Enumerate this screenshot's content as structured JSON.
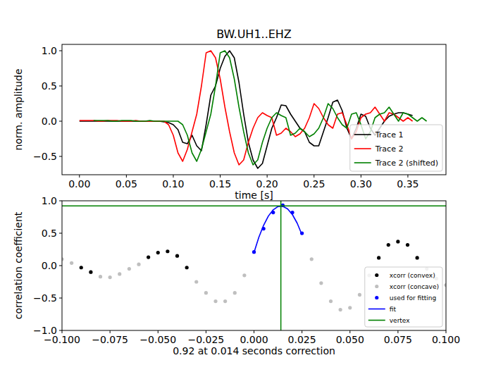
{
  "chart_data": [
    {
      "type": "line",
      "title": "BW.UH1..EHZ",
      "x_label": "time [s]",
      "y_label": "norm. amplitude",
      "x": [
        0,
        0.005,
        0.01,
        0.015,
        0.02,
        0.025,
        0.03,
        0.035,
        0.04,
        0.045,
        0.05,
        0.055,
        0.06,
        0.065,
        0.07,
        0.075,
        0.08,
        0.085,
        0.09,
        0.095,
        0.1,
        0.105,
        0.11,
        0.115,
        0.12,
        0.125,
        0.13,
        0.135,
        0.14,
        0.145,
        0.15,
        0.155,
        0.16,
        0.165,
        0.17,
        0.175,
        0.18,
        0.185,
        0.19,
        0.195,
        0.2,
        0.205,
        0.21,
        0.215,
        0.22,
        0.225,
        0.23,
        0.235,
        0.24,
        0.245,
        0.25,
        0.255,
        0.26,
        0.265,
        0.27,
        0.275,
        0.28,
        0.285,
        0.29,
        0.295,
        0.3,
        0.305,
        0.31,
        0.315,
        0.32,
        0.325,
        0.33,
        0.335,
        0.34,
        0.345,
        0.35,
        0.355
      ],
      "xlim": [
        -0.0186,
        0.3906
      ],
      "xticks": [
        {
          "value": 0,
          "label": "0.00"
        },
        {
          "value": 0.05,
          "label": "0.05"
        },
        {
          "value": 0.1,
          "label": "0.10"
        },
        {
          "value": 0.15,
          "label": "0.15"
        },
        {
          "value": 0.2,
          "label": "0.20"
        },
        {
          "value": 0.25,
          "label": "0.25"
        },
        {
          "value": 0.3,
          "label": "0.30"
        },
        {
          "value": 0.35,
          "label": "0.35"
        }
      ],
      "ylim": [
        -0.76,
        1.09
      ],
      "yticks": [
        {
          "value": -0.5,
          "label": "−0.5"
        },
        {
          "value": 0,
          "label": "0.0"
        },
        {
          "value": 0.5,
          "label": "0.5"
        },
        {
          "value": 1,
          "label": "1.0"
        }
      ],
      "legend": "lower right",
      "series": [
        {
          "name": "Trace 1",
          "color": "#000000",
          "line_style": "solid",
          "values": [
            0,
            0,
            0,
            0,
            0,
            0,
            0,
            0,
            0,
            0,
            0,
            0,
            0,
            0,
            0,
            0,
            0,
            0,
            -0.01,
            -0.02,
            -0.05,
            -0.12,
            -0.3,
            -0.32,
            -0.2,
            -0.35,
            -0.42,
            -0.05,
            0.37,
            0.5,
            0.75,
            0.92,
            1.0,
            0.9,
            0.55,
            0.1,
            -0.3,
            -0.55,
            -0.67,
            -0.6,
            -0.35,
            -0.1,
            0.05,
            0.23,
            0.22,
            0.1,
            0,
            -0.1,
            -0.15,
            -0.3,
            -0.35,
            -0.35,
            -0.15,
            0.05,
            0.27,
            0.3,
            0.15,
            -0.1,
            -0.25,
            -0.1,
            0.1,
            0.07,
            -0.1,
            -0.2,
            -0.1,
            0,
            0.07,
            0.1,
            0.12,
            0.12,
            0.1,
            0.08
          ]
        },
        {
          "name": "Trace 2",
          "color": "#ff0000",
          "line_style": "solid",
          "values": [
            0.01,
            0.01,
            0.01,
            0.01,
            0,
            0,
            0.01,
            0.01,
            0.01,
            0,
            0,
            0,
            0.01,
            0,
            0,
            0,
            0,
            0,
            0,
            -0.05,
            -0.2,
            -0.45,
            -0.57,
            -0.4,
            -0.15,
            0.1,
            0.5,
            0.97,
            1.0,
            0.9,
            0.6,
            0.2,
            -0.15,
            -0.45,
            -0.62,
            -0.55,
            -0.3,
            -0.1,
            0.05,
            0.12,
            0.08,
            0.05,
            -0.2,
            -0.17,
            -0.1,
            -0.15,
            -0.22,
            -0.18,
            -0.1,
            0.05,
            0.25,
            0.18,
            0.05,
            -0.05,
            -0.1,
            0.1,
            0.12,
            -0.05,
            -0.25,
            -0.15,
            0.05,
            0.1,
            0.12,
            0.2,
            0.1,
            0,
            0.12,
            0.1,
            0.05,
            0,
            0.05,
            0
          ]
        },
        {
          "name": "Trace 2 (shifted)",
          "color": "#008000",
          "line_style": "solid",
          "x": [
            0.015,
            0.02,
            0.025,
            0.03,
            0.035,
            0.04,
            0.045,
            0.05,
            0.055,
            0.06,
            0.065,
            0.07,
            0.075,
            0.08,
            0.085,
            0.09,
            0.095,
            0.1,
            0.105,
            0.11,
            0.115,
            0.12,
            0.125,
            0.13,
            0.135,
            0.14,
            0.145,
            0.15,
            0.155,
            0.16,
            0.165,
            0.17,
            0.175,
            0.18,
            0.185,
            0.19,
            0.195,
            0.2,
            0.205,
            0.21,
            0.215,
            0.22,
            0.225,
            0.23,
            0.235,
            0.24,
            0.245,
            0.25,
            0.255,
            0.26,
            0.265,
            0.27,
            0.275,
            0.28,
            0.285,
            0.29,
            0.295,
            0.3,
            0.305,
            0.31,
            0.315,
            0.32,
            0.325,
            0.33,
            0.335,
            0.34,
            0.345,
            0.35,
            0.355,
            0.36,
            0.365,
            0.37
          ],
          "values": [
            0.01,
            0.01,
            0.01,
            0.01,
            0,
            0,
            0.01,
            0.01,
            0.01,
            0,
            0,
            0,
            0.01,
            0,
            0,
            0,
            0,
            0,
            0,
            -0.05,
            -0.2,
            -0.45,
            -0.57,
            -0.4,
            -0.15,
            0.1,
            0.5,
            0.97,
            1.0,
            0.9,
            0.6,
            0.2,
            -0.15,
            -0.45,
            -0.62,
            -0.55,
            -0.3,
            -0.1,
            0.05,
            0.12,
            0.08,
            0.05,
            -0.2,
            -0.17,
            -0.1,
            -0.15,
            -0.22,
            -0.18,
            -0.1,
            0.05,
            0.25,
            0.18,
            0.05,
            -0.05,
            -0.1,
            0.1,
            0.12,
            -0.05,
            -0.25,
            -0.15,
            0.05,
            0.1,
            0.12,
            0.2,
            0.1,
            0,
            0.12,
            0.1,
            0.05,
            0,
            0.05,
            0
          ]
        }
      ]
    },
    {
      "type": "scatter",
      "x_label": "0.92 at 0.014 seconds correction",
      "y_label": "correlation coefficient",
      "xlim": [
        -0.1,
        0.1
      ],
      "xticks": [
        {
          "value": -0.1,
          "label": "−0.100"
        },
        {
          "value": -0.075,
          "label": "−0.075"
        },
        {
          "value": -0.05,
          "label": "−0.050"
        },
        {
          "value": -0.025,
          "label": "−0.025"
        },
        {
          "value": 0,
          "label": "0.000"
        },
        {
          "value": 0.025,
          "label": "0.025"
        },
        {
          "value": 0.05,
          "label": "0.050"
        },
        {
          "value": 0.075,
          "label": "0.075"
        },
        {
          "value": 0.1,
          "label": "0.100"
        }
      ],
      "ylim": [
        -1,
        1
      ],
      "yticks": [
        {
          "value": -1,
          "label": "−1.0"
        },
        {
          "value": -0.5,
          "label": "−0.5"
        },
        {
          "value": 0,
          "label": "0.0"
        },
        {
          "value": 0.5,
          "label": "0.5"
        },
        {
          "value": 1,
          "label": "1.0"
        }
      ],
      "legend": "lower right",
      "series": [
        {
          "name": "xcorr (convex)",
          "color": "#000000",
          "type": "scatter",
          "marker": "dot",
          "x": [
            -0.09,
            -0.085,
            -0.055,
            -0.05,
            -0.045,
            -0.04,
            -0.035,
            0.065,
            0.07,
            0.075,
            0.08,
            0.085
          ],
          "values": [
            -0.03,
            -0.1,
            0.13,
            0.2,
            0.22,
            0.15,
            -0.03,
            0.12,
            0.32,
            0.37,
            0.32,
            0.12
          ]
        },
        {
          "name": "xcorr (concave)",
          "color": "#bfbfbf",
          "type": "scatter",
          "marker": "dot",
          "x": [
            -0.1,
            -0.095,
            -0.08,
            -0.075,
            -0.07,
            -0.065,
            -0.06,
            -0.03,
            -0.025,
            -0.02,
            -0.015,
            -0.01,
            -0.005,
            0.03,
            0.035,
            0.04,
            0.045,
            0.05,
            0.055,
            0.06,
            0.09,
            0.095,
            0.1
          ],
          "values": [
            0.1,
            0.04,
            -0.17,
            -0.18,
            -0.13,
            -0.05,
            0.02,
            -0.25,
            -0.42,
            -0.55,
            -0.55,
            -0.42,
            -0.15,
            0.1,
            -0.27,
            -0.55,
            -0.68,
            -0.65,
            -0.45,
            -0.15,
            -0.05,
            -0.2,
            -0.3
          ]
        },
        {
          "name": "used for fitting",
          "color": "#0000ff",
          "type": "scatter",
          "marker": "dot",
          "x": [
            0,
            0.005,
            0.01,
            0.015,
            0.02,
            0.025
          ],
          "values": [
            0.21,
            0.57,
            0.82,
            0.93,
            0.82,
            0.5
          ]
        },
        {
          "name": "fit",
          "color": "#0000ff",
          "type": "line",
          "line_style": "solid",
          "x": [
            0,
            0.0025,
            0.005,
            0.0075,
            0.01,
            0.0125,
            0.015,
            0.0175,
            0.02,
            0.0225,
            0.025
          ],
          "values": [
            0.2,
            0.434,
            0.622,
            0.765,
            0.861,
            0.912,
            0.916,
            0.875,
            0.788,
            0.655,
            0.476
          ]
        },
        {
          "name": "vertex",
          "color": "#008000",
          "type": "crosshair",
          "line_style": "solid",
          "x": [
            0.014
          ],
          "values": [
            0.92
          ]
        }
      ]
    }
  ]
}
